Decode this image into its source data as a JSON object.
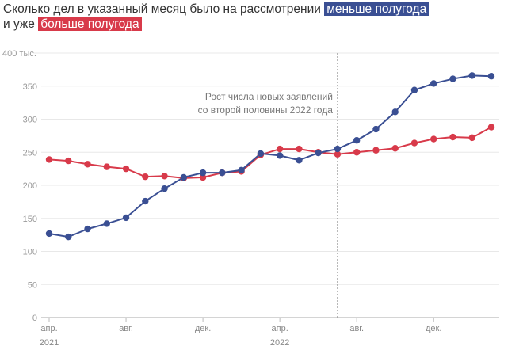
{
  "title": {
    "line1": "Сколько дел в указанный месяц было на рассмотрении",
    "tag1": "меньше полугода",
    "line2": "и уже",
    "tag2": "больше полугода"
  },
  "colors": {
    "less": "#3a4f93",
    "more": "#d83a4a"
  },
  "chart_data": {
    "type": "line",
    "title": "Сколько дел в указанный месяц было на рассмотрении меньше полугода и уже больше полугода",
    "x": [
      "2021-04",
      "2021-05",
      "2021-06",
      "2021-07",
      "2021-08",
      "2021-09",
      "2021-10",
      "2021-11",
      "2021-12",
      "2022-01",
      "2022-02",
      "2022-03",
      "2022-04",
      "2022-05",
      "2022-06",
      "2022-07",
      "2022-08",
      "2022-09",
      "2022-10",
      "2022-11",
      "2022-12",
      "2023-01",
      "2023-02",
      "2023-03"
    ],
    "x_ticks": [
      {
        "i": 0,
        "label": "апр.",
        "year": "2021"
      },
      {
        "i": 4,
        "label": "авг."
      },
      {
        "i": 8,
        "label": "дек."
      },
      {
        "i": 12,
        "label": "апр.",
        "year": "2022"
      },
      {
        "i": 16,
        "label": "авг."
      },
      {
        "i": 20,
        "label": "дек."
      }
    ],
    "y_ticks": [
      {
        "v": 0,
        "label": "0"
      },
      {
        "v": 50,
        "label": "50"
      },
      {
        "v": 100,
        "label": "100"
      },
      {
        "v": 150,
        "label": "150"
      },
      {
        "v": 200,
        "label": "200"
      },
      {
        "v": 250,
        "label": "250"
      },
      {
        "v": 300,
        "label": "300"
      },
      {
        "v": 350,
        "label": "350"
      },
      {
        "v": 400,
        "label": "400 тыс."
      }
    ],
    "ylim": [
      0,
      400
    ],
    "series": [
      {
        "name": "меньше полугода",
        "color": "#3a4f93",
        "values": [
          127,
          122,
          134,
          142,
          151,
          176,
          195,
          212,
          219,
          219,
          223,
          248,
          245,
          238,
          249,
          255,
          268,
          285,
          311,
          344,
          354,
          361,
          366,
          365
        ]
      },
      {
        "name": "больше полугода",
        "color": "#d83a4a",
        "values": [
          239,
          237,
          232,
          228,
          225,
          213,
          214,
          211,
          212,
          219,
          221,
          246,
          255,
          255,
          250,
          247,
          250,
          253,
          256,
          264,
          270,
          273,
          272,
          288
        ]
      }
    ],
    "annotation": {
      "at_index": 15,
      "lines": [
        "Рост числа новых заявлений",
        "со второй половины 2022 года"
      ]
    }
  }
}
